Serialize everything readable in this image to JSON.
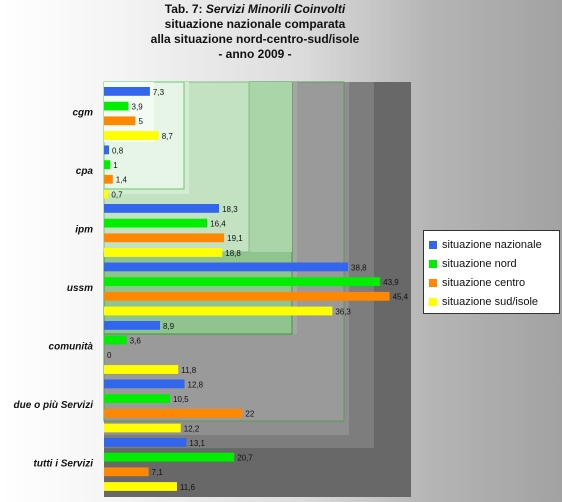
{
  "title": {
    "line1_prefix": "Tab. 7: ",
    "line1_emph": "Servizi Minorili Coinvolti",
    "line2": "situazione nazionale comparata",
    "line3": "alla situazione nord-centro-sud/isole",
    "line4": "- anno 2009 -"
  },
  "chart_data": {
    "type": "bar",
    "orientation": "horizontal",
    "categories": [
      "cgm",
      "cpa",
      "ipm",
      "ussm",
      "comunità",
      "due o più Servizi",
      "tutti i Servizi"
    ],
    "series": [
      {
        "name": "situazione nazionale",
        "color": "#3366ee",
        "values": [
          7.3,
          0.8,
          18.3,
          38.8,
          8.9,
          12.8,
          13.1
        ],
        "labels": [
          "7,3",
          "0,8",
          "18,3",
          "38,8",
          "8,9",
          "12,8",
          "13,1"
        ]
      },
      {
        "name": "situazione nord",
        "color": "#00ee00",
        "values": [
          3.9,
          1,
          16.4,
          43.9,
          3.6,
          10.5,
          20.7
        ],
        "labels": [
          "3,9",
          "1",
          "16,4",
          "43,9",
          "3,6",
          "10,5",
          "20,7"
        ]
      },
      {
        "name": "situazione centro",
        "color": "#ff8800",
        "values": [
          5,
          1.4,
          19.1,
          45.4,
          0,
          22,
          7.1
        ],
        "labels": [
          "5",
          "1,4",
          "19,1",
          "45,4",
          "0",
          "22",
          "7,1"
        ]
      },
      {
        "name": "situazione sud/isole",
        "color": "#ffff00",
        "values": [
          8.7,
          0.7,
          18.8,
          36.3,
          11.8,
          12.2,
          11.6
        ],
        "labels": [
          "8,7",
          "0,7",
          "18,8",
          "36,3",
          "11,8",
          "12,2",
          "11,6"
        ]
      }
    ],
    "xlim": [
      0,
      50
    ],
    "grid": false,
    "legend_position": "right"
  }
}
